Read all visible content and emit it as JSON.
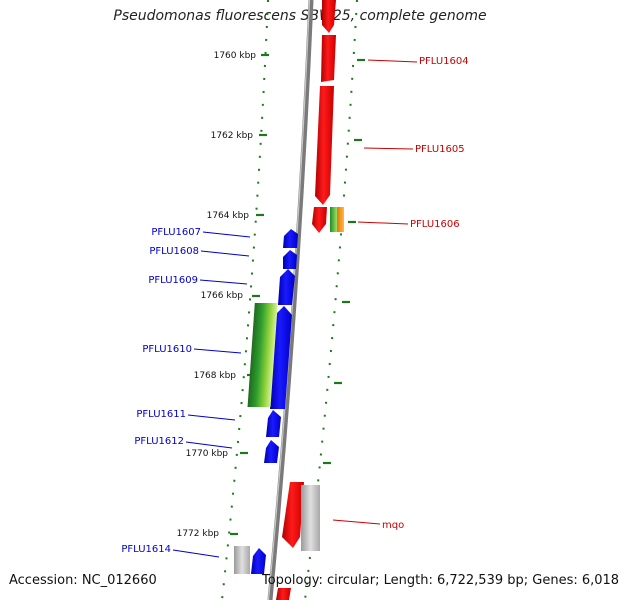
{
  "title": "Pseudomonas fluorescens SBW25, complete genome",
  "footer": {
    "accession": "Accession: NC_012660",
    "topology": "Topology: circular; Length: 6,722,539 bp; Genes: 6,018"
  },
  "colors": {
    "forward_strand": "#e00000",
    "reverse_strand": "#0000ee",
    "backbone": "#888888",
    "tick": "#1a7a1a"
  },
  "kbp_labels": [
    "1760 kbp",
    "1762 kbp",
    "1764 kbp",
    "1766 kbp",
    "1768 kbp",
    "1770 kbp",
    "1772 kbp"
  ],
  "genes_right": [
    {
      "name": "PFLU1604",
      "color": "#cc0000"
    },
    {
      "name": "PFLU1605",
      "color": "#cc0000"
    },
    {
      "name": "PFLU1606",
      "color": "#cc0000"
    },
    {
      "name": "mqo",
      "color": "#cc0000"
    }
  ],
  "genes_left": [
    {
      "name": "PFLU1607",
      "color": "#0000cc"
    },
    {
      "name": "PFLU1608",
      "color": "#0000cc"
    },
    {
      "name": "PFLU1609",
      "color": "#0000cc"
    },
    {
      "name": "PFLU1610",
      "color": "#0000cc"
    },
    {
      "name": "PFLU1611",
      "color": "#0000cc"
    },
    {
      "name": "PFLU1612",
      "color": "#0000cc"
    },
    {
      "name": "PFLU1614",
      "color": "#0000cc"
    }
  ]
}
